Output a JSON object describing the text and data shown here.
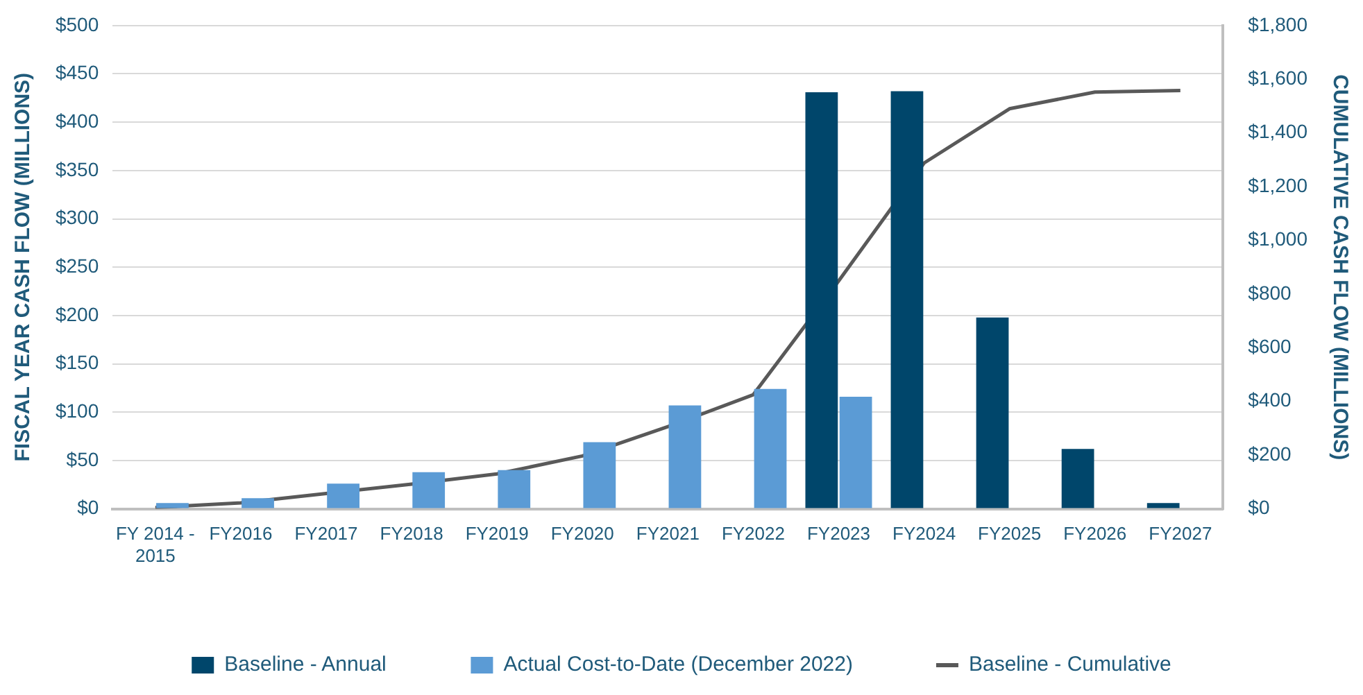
{
  "chart_data": {
    "type": "bar",
    "categories": [
      "FY 2014 - 2015",
      "FY2016",
      "FY2017",
      "FY2018",
      "FY2019",
      "FY2020",
      "FY2021",
      "FY2022",
      "FY2023",
      "FY2024",
      "FY2025",
      "FY2026",
      "FY2027"
    ],
    "series": [
      {
        "name": "Baseline - Annual",
        "color": "#00466b",
        "values": [
          null,
          null,
          null,
          null,
          null,
          null,
          null,
          null,
          431,
          432,
          198,
          62,
          6
        ]
      },
      {
        "name": "Actual Cost-to-Date (December 2022)",
        "color": "#5b9bd5",
        "values": [
          6,
          11,
          26,
          38,
          40,
          69,
          107,
          124,
          116,
          null,
          null,
          null,
          null
        ]
      },
      {
        "name": "Baseline - Cumulative",
        "type": "line",
        "axis": "y2",
        "color": "#595959",
        "marker": "none",
        "values": [
          5,
          22,
          57,
          92,
          130,
          197,
          306,
          425,
          849,
          1288,
          1490,
          1552,
          1558
        ]
      }
    ],
    "ylabel": "FISCAL YEAR CASH FLOW (MILLIONS)",
    "y2label": "CUMULATIVE CASH FLOW (MILLIONS)",
    "ylim": [
      0,
      500
    ],
    "yticks": [
      {
        "value": 0,
        "label": "$0"
      },
      {
        "value": 50,
        "label": "$50"
      },
      {
        "value": 100,
        "label": "$100"
      },
      {
        "value": 150,
        "label": "$150"
      },
      {
        "value": 200,
        "label": "$200"
      },
      {
        "value": 250,
        "label": "$250"
      },
      {
        "value": 300,
        "label": "$300"
      },
      {
        "value": 350,
        "label": "$350"
      },
      {
        "value": 400,
        "label": "$400"
      },
      {
        "value": 450,
        "label": "$450"
      },
      {
        "value": 500,
        "label": "$500"
      }
    ],
    "y2lim": [
      0,
      1800
    ],
    "y2ticks": [
      {
        "value": 0,
        "label": "$0"
      },
      {
        "value": 200,
        "label": "$200"
      },
      {
        "value": 400,
        "label": "$400"
      },
      {
        "value": 600,
        "label": "$600"
      },
      {
        "value": 800,
        "label": "$800"
      },
      {
        "value": 1000,
        "label": "$1,000"
      },
      {
        "value": 1200,
        "label": "$1,200"
      },
      {
        "value": 1400,
        "label": "$1,400"
      },
      {
        "value": 1600,
        "label": "$1,600"
      },
      {
        "value": 1800,
        "label": "$1,800"
      }
    ],
    "grid": "y",
    "legend": "bottom"
  }
}
